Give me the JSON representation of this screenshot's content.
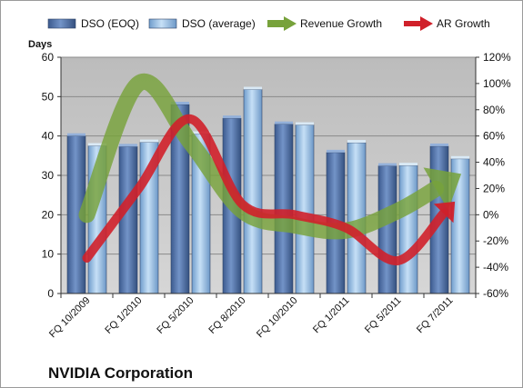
{
  "company_label": "NVIDIA Corporation",
  "chart_data": {
    "type": "bar",
    "categories": [
      "FQ 10/2009",
      "FQ 1/2010",
      "FQ 5/2010",
      "FQ 8/2010",
      "FQ 10/2010",
      "FQ 1/2011",
      "FQ 5/2011",
      "FQ 7/2011"
    ],
    "ylabel": "Days",
    "ylim": [
      0,
      60
    ],
    "yticks": [
      0,
      10,
      20,
      30,
      40,
      50,
      60
    ],
    "y2lim": [
      -60,
      120
    ],
    "y2ticks": [
      "-60%",
      "-40%",
      "-20%",
      "0%",
      "20%",
      "40%",
      "60%",
      "80%",
      "100%",
      "120%"
    ],
    "grid": true,
    "legend_position": "top",
    "series": [
      {
        "name": "DSO (EOQ)",
        "kind": "bar",
        "axis": "left",
        "color": "#4f6fa6",
        "values": [
          40,
          37.3,
          48,
          44.5,
          43,
          35.8,
          32.4,
          37.4
        ]
      },
      {
        "name": "DSO (average)",
        "kind": "bar",
        "axis": "left",
        "color": "#9cc3e8",
        "values": [
          37.5,
          38.4,
          40.5,
          51.8,
          42.8,
          38.3,
          32.5,
          34.2
        ]
      },
      {
        "name": "Revenue Growth",
        "kind": "line",
        "axis": "right",
        "unit": "%",
        "color": "#77a23b",
        "values": [
          0,
          100,
          55,
          3,
          -8,
          -12,
          3,
          26
        ]
      },
      {
        "name": "AR Growth",
        "kind": "line",
        "axis": "right",
        "unit": "%",
        "color": "#d0202a",
        "values": [
          -33,
          20,
          73,
          8,
          0,
          -10,
          -35,
          6
        ]
      }
    ]
  }
}
